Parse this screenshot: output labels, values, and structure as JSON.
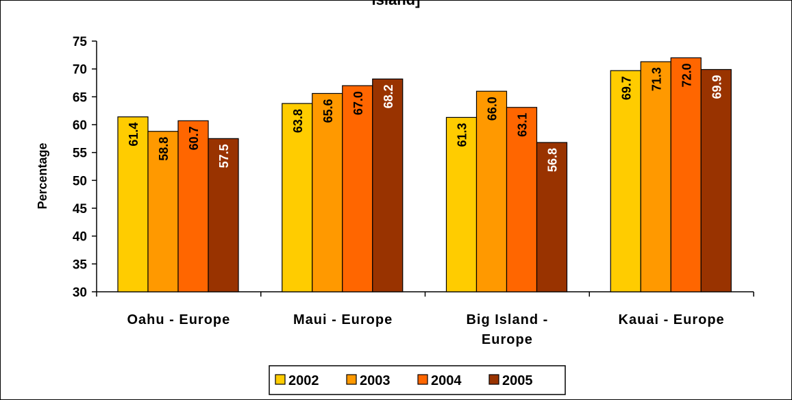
{
  "chart_data": {
    "type": "bar",
    "title": "Island]",
    "xlabel": "",
    "ylabel": "Percentage",
    "ylim": [
      30,
      75
    ],
    "yticks": [
      30,
      35,
      40,
      45,
      50,
      55,
      60,
      65,
      70,
      75
    ],
    "grid": false,
    "legend_position": "bottom",
    "categories": [
      [
        "Oahu - Europe"
      ],
      [
        "Maui - Europe"
      ],
      [
        "Big Island -",
        "Europe"
      ],
      [
        "Kauai - Europe"
      ]
    ],
    "series": [
      {
        "name": "2002",
        "color": "#FFCC00",
        "label_color": "#000000",
        "values": [
          61.4,
          63.8,
          61.3,
          69.7
        ]
      },
      {
        "name": "2003",
        "color": "#FF9900",
        "label_color": "#000000",
        "values": [
          58.8,
          65.6,
          66.0,
          71.3
        ]
      },
      {
        "name": "2004",
        "color": "#FF6600",
        "label_color": "#000000",
        "values": [
          60.7,
          67.0,
          63.1,
          72.0
        ]
      },
      {
        "name": "2005",
        "color": "#993300",
        "label_color": "#FFFFFF",
        "values": [
          57.5,
          68.2,
          56.8,
          69.9
        ]
      }
    ]
  }
}
